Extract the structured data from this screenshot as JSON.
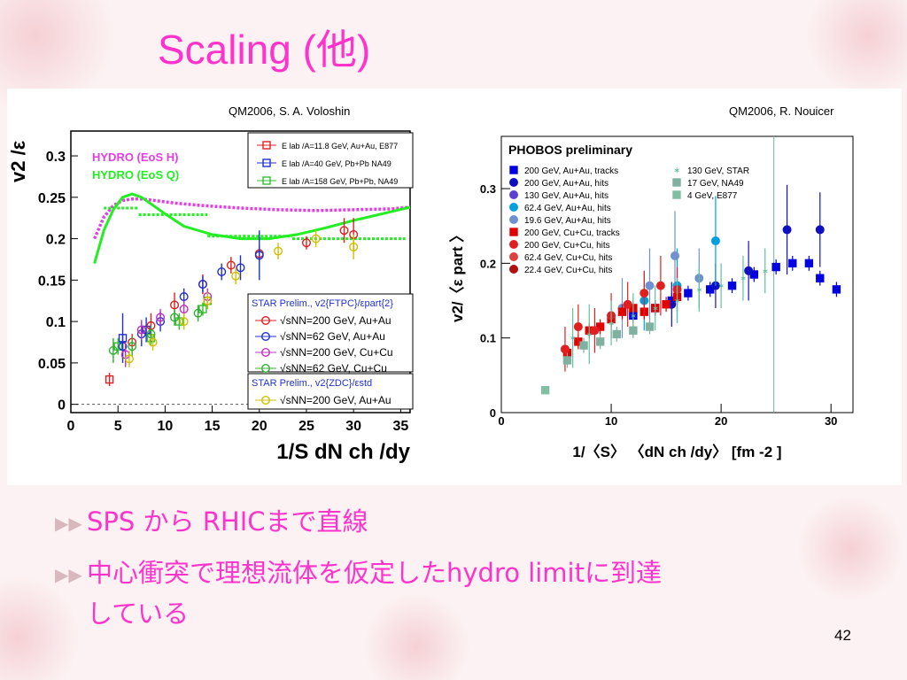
{
  "slide": {
    "title": "Scaling (他)",
    "page_number": "42",
    "bullets": [
      "SPS から RHICまで直線",
      "中心衝突で理想流体を仮定したhydro limitに到達",
      "している"
    ]
  },
  "colors": {
    "title": "#ff33cc",
    "bullet_arrow": "#d8b8bc"
  },
  "chart_data": [
    {
      "type": "scatter",
      "credit": "QM2006, S. A. Voloshin",
      "xlabel": "1/S dN ch /dy",
      "ylabel": "v2 /ε",
      "xlim": [
        0,
        36
      ],
      "ylim": [
        -0.01,
        0.33
      ],
      "xticks": [
        "0",
        "5",
        "10",
        "15",
        "20",
        "25",
        "30",
        "35"
      ],
      "yticks": [
        "0",
        "0.05",
        "0.1",
        "0.15",
        "0.2",
        "0.25",
        "0.3"
      ],
      "hydro_labels": [
        "HYDRO (EoS H)",
        "HYDRO (EoS Q)"
      ],
      "hydro_colors": [
        "#e040e0",
        "#22ee22"
      ],
      "legend_top": [
        {
          "text": "E lab /A=11.8 GeV, Au+Au, E877",
          "color": "#e02020",
          "marker": "square"
        },
        {
          "text": "E lab /A=40 GeV, Pb+Pb NA49",
          "color": "#2030d0",
          "marker": "square"
        },
        {
          "text": "E lab /A=158 GeV, Pb+Pb, NA49",
          "color": "#30c030",
          "marker": "square"
        }
      ],
      "legend_star": {
        "header": "STAR Prelim., v2{FTPC}/εpart{2}",
        "entries": [
          {
            "text": "√sNN=200 GeV, Au+Au",
            "color": "#e02020"
          },
          {
            "text": "√sNN=62 GeV, Au+Au",
            "color": "#2030d0"
          },
          {
            "text": "√sNN=200 GeV, Cu+Cu",
            "color": "#c030c0"
          },
          {
            "text": "√sNN=62 GeV, Cu+Cu",
            "color": "#30b030"
          }
        ],
        "header2": "STAR Prelim., v2{ZDC}/εstd",
        "entry2": {
          "text": "√sNN=200 GeV, Au+Au",
          "color": "#d0c000"
        }
      },
      "hydro_curves": {
        "eos_h": {
          "x": [
            2.5,
            3.5,
            4.5,
            5.5,
            6.5,
            7.5,
            9,
            11,
            14,
            18,
            22,
            26,
            30,
            34,
            36
          ],
          "y": [
            0.2,
            0.226,
            0.24,
            0.246,
            0.248,
            0.248,
            0.246,
            0.243,
            0.24,
            0.237,
            0.235,
            0.234,
            0.235,
            0.236,
            0.238
          ]
        },
        "eos_q": {
          "x": [
            2.5,
            3.5,
            4.5,
            5.5,
            6.5,
            7.5,
            8.5,
            10,
            12,
            15,
            18,
            21,
            24,
            27,
            30,
            33,
            36
          ],
          "y": [
            0.17,
            0.21,
            0.235,
            0.25,
            0.254,
            0.25,
            0.242,
            0.23,
            0.215,
            0.205,
            0.2,
            0.2,
            0.205,
            0.213,
            0.222,
            0.23,
            0.238
          ]
        }
      },
      "hydro_segments": [
        {
          "x1": 3.5,
          "x2": 7.2,
          "y": 0.237
        },
        {
          "x1": 7.2,
          "x2": 14.5,
          "y": 0.229
        },
        {
          "x1": 14.5,
          "x2": 23.5,
          "y": 0.203
        },
        {
          "x1": 23.5,
          "x2": 35.5,
          "y": 0.2
        }
      ],
      "series": [
        {
          "name": "E877 Au+Au",
          "color": "#e02020",
          "marker": "square",
          "x": [
            4.1
          ],
          "y": [
            0.03
          ],
          "err": [
            0.008
          ]
        },
        {
          "name": "NA49 40 GeV",
          "color": "#2030d0",
          "marker": "square",
          "x": [
            5.5,
            8
          ],
          "y": [
            0.08,
            0.09
          ],
          "err": [
            0.03,
            0.015
          ]
        },
        {
          "name": "NA49 158 GeV",
          "color": "#30c030",
          "marker": "square",
          "x": [
            5,
            8.5,
            11.5,
            14,
            14.5
          ],
          "y": [
            0.07,
            0.08,
            0.1,
            0.115,
            0.125
          ],
          "err": [
            0.01,
            0.01,
            0.01,
            0.008,
            0.008
          ]
        },
        {
          "name": "200 Au+Au",
          "color": "#e02020",
          "marker": "circle",
          "x": [
            6.5,
            8.5,
            11,
            14,
            17,
            20,
            25,
            29,
            30
          ],
          "y": [
            0.075,
            0.095,
            0.12,
            0.145,
            0.168,
            0.182,
            0.195,
            0.21,
            0.205
          ],
          "err": [
            0.01,
            0.015,
            0.015,
            0.012,
            0.01,
            0.01,
            0.008,
            0.015,
            0.02
          ]
        },
        {
          "name": "62 Au+Au",
          "color": "#2030d0",
          "marker": "circle",
          "x": [
            5.5,
            7.5,
            9.5,
            12,
            14,
            16,
            18,
            20
          ],
          "y": [
            0.07,
            0.085,
            0.1,
            0.13,
            0.145,
            0.16,
            0.165,
            0.18
          ],
          "err": [
            0.015,
            0.015,
            0.012,
            0.01,
            0.01,
            0.01,
            0.015,
            0.03
          ]
        },
        {
          "name": "200 Cu+Cu",
          "color": "#c030c0",
          "marker": "circle",
          "x": [
            5.8,
            7.5,
            9.5,
            12,
            14.5
          ],
          "y": [
            0.06,
            0.09,
            0.105,
            0.115,
            0.13
          ],
          "err": [
            0.015,
            0.012,
            0.01,
            0.01,
            0.01
          ]
        },
        {
          "name": "62 Cu+Cu",
          "color": "#30b030",
          "marker": "circle",
          "x": [
            4.5,
            6.5,
            8.5,
            11,
            13.5
          ],
          "y": [
            0.065,
            0.07,
            0.085,
            0.105,
            0.11
          ],
          "err": [
            0.015,
            0.012,
            0.01,
            0.01,
            0.01
          ]
        },
        {
          "name": "ZDC 200 Au+Au",
          "color": "#d0c000",
          "marker": "circle",
          "x": [
            6.2,
            8.7,
            12,
            14.5,
            17.5,
            22,
            26,
            30
          ],
          "y": [
            0.055,
            0.075,
            0.1,
            0.125,
            0.155,
            0.185,
            0.2,
            0.19
          ],
          "err": [
            0.01,
            0.01,
            0.01,
            0.01,
            0.01,
            0.01,
            0.01,
            0.015
          ]
        }
      ]
    },
    {
      "type": "scatter",
      "credit": "QM2006, R. Nouicer",
      "title": "PHOBOS preliminary",
      "xlabel": "1/〈S〉 〈dN ch /dy〉 [fm -2 ]",
      "ylabel": "v2/〈ε part 〉",
      "xlim": [
        0,
        32
      ],
      "ylim": [
        0,
        0.37
      ],
      "xticks": [
        "0",
        "10",
        "20",
        "30"
      ],
      "yticks": [
        "0",
        "0.1",
        "0.2",
        "0.3"
      ],
      "legend": [
        {
          "text": "200 GeV, Au+Au, tracks",
          "color": "#0000e0",
          "marker": "square"
        },
        {
          "text": "200 GeV, Au+Au, hits",
          "color": "#1010c0",
          "marker": "circle"
        },
        {
          "text": "130 GeV, Au+Au, hits",
          "color": "#6040d0",
          "marker": "circle"
        },
        {
          "text": "62.4 GeV, Au+Au, hits",
          "color": "#00a0e0",
          "marker": "circle"
        },
        {
          "text": "19.6 GeV, Au+Au, hits",
          "color": "#7090d0",
          "marker": "circle"
        },
        {
          "text": "200 GeV, Cu+Cu, tracks",
          "color": "#e00000",
          "marker": "square"
        },
        {
          "text": "200 GeV, Cu+Cu, hits",
          "color": "#e02020",
          "marker": "circle"
        },
        {
          "text": "62.4 GeV, Cu+Cu, hits",
          "color": "#e04040",
          "marker": "circle"
        },
        {
          "text": "22.4 GeV, Cu+Cu, hits",
          "color": "#b01010",
          "marker": "circle"
        }
      ],
      "legend2": [
        {
          "text": "130 GeV, STAR",
          "color": "#60c0a0",
          "marker": "star"
        },
        {
          "text": "17 GeV, NA49",
          "color": "#80b0a0",
          "marker": "square"
        },
        {
          "text": "4 GeV, E877",
          "color": "#80c0a0",
          "marker": "square"
        }
      ],
      "vline_x": 24.8,
      "series": [
        {
          "name": "Au+Au tracks",
          "color": "#0000e0",
          "marker": "square",
          "x": [
            12,
            14,
            15.5,
            17,
            19,
            21,
            23,
            25,
            26.5,
            28,
            29,
            30.5
          ],
          "y": [
            0.13,
            0.14,
            0.15,
            0.16,
            0.165,
            0.17,
            0.185,
            0.195,
            0.2,
            0.2,
            0.18,
            0.165
          ],
          "err": [
            0.01,
            0.01,
            0.01,
            0.01,
            0.01,
            0.01,
            0.01,
            0.01,
            0.01,
            0.01,
            0.01,
            0.01
          ]
        },
        {
          "name": "Au+Au hits",
          "color": "#1010c0",
          "marker": "circle",
          "x": [
            15.5,
            19.5,
            22.5,
            26,
            29
          ],
          "y": [
            0.145,
            0.17,
            0.19,
            0.245,
            0.245
          ],
          "err": [
            0.03,
            0.03,
            0.04,
            0.06,
            0.05
          ]
        },
        {
          "name": "62.4 Au+Au",
          "color": "#00a0e0",
          "marker": "circle",
          "x": [
            13,
            16,
            19.5
          ],
          "y": [
            0.15,
            0.17,
            0.23
          ],
          "err": [
            0.04,
            0.05,
            0.06
          ]
        },
        {
          "name": "19.6 Au+Au",
          "color": "#7090d0",
          "marker": "circle",
          "x": [
            11,
            13.5,
            15.8,
            18
          ],
          "y": [
            0.14,
            0.17,
            0.21,
            0.18
          ],
          "err": [
            0.04,
            0.05,
            0.06,
            0.04
          ]
        },
        {
          "name": "Cu+Cu tracks",
          "color": "#e00000",
          "marker": "square",
          "x": [
            6,
            7,
            8,
            9,
            10,
            11,
            12,
            13,
            14,
            15,
            16
          ],
          "y": [
            0.08,
            0.095,
            0.11,
            0.115,
            0.125,
            0.135,
            0.14,
            0.135,
            0.14,
            0.145,
            0.155
          ],
          "err": [
            0.01,
            0.01,
            0.01,
            0.01,
            0.01,
            0.01,
            0.01,
            0.01,
            0.01,
            0.01,
            0.01
          ]
        },
        {
          "name": "Cu+Cu hits",
          "color": "#e02020",
          "marker": "circle",
          "x": [
            5.8,
            7,
            8.5,
            10,
            11.5,
            13,
            14.5,
            16
          ],
          "y": [
            0.085,
            0.115,
            0.11,
            0.13,
            0.145,
            0.16,
            0.17,
            0.165
          ],
          "err": [
            0.03,
            0.03,
            0.03,
            0.03,
            0.03,
            0.03,
            0.04,
            0.03
          ]
        },
        {
          "name": "STAR 130",
          "color": "#60c0a0",
          "marker": "star",
          "x": [
            6.5,
            8,
            10,
            12,
            14,
            16,
            18,
            20,
            22,
            24
          ],
          "y": [
            0.1,
            0.105,
            0.12,
            0.13,
            0.14,
            0.15,
            0.165,
            0.17,
            0.18,
            0.19
          ],
          "err": [
            0.04,
            0.04,
            0.03,
            0.03,
            0.03,
            0.03,
            0.03,
            0.03,
            0.03,
            0.03
          ]
        },
        {
          "name": "NA49 17",
          "color": "#80b0a0",
          "marker": "square",
          "x": [
            6,
            7.5,
            9,
            10.5,
            12,
            13.5
          ],
          "y": [
            0.07,
            0.09,
            0.095,
            0.105,
            0.11,
            0.115
          ],
          "err": [
            0.01,
            0.01,
            0.01,
            0.01,
            0.01,
            0.01
          ]
        },
        {
          "name": "E877 4",
          "color": "#80c0a0",
          "marker": "square",
          "x": [
            4
          ],
          "y": [
            0.03
          ],
          "err": [
            0.005
          ]
        }
      ]
    }
  ]
}
